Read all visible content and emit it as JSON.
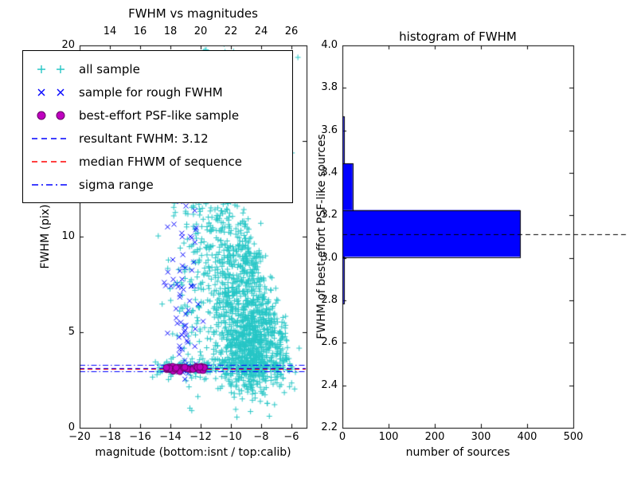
{
  "figure": {
    "background": "#ffffff"
  },
  "chart_data": [
    {
      "type": "scatter",
      "title": "FWHM vs magnitudes",
      "xlabel": "magnitude (bottom:isnt / top:calib)",
      "ylabel": "FWHM (pix)",
      "xlim": [
        -20,
        -5
      ],
      "ylim": [
        0,
        20
      ],
      "xticks": [
        -20,
        -18,
        -16,
        -14,
        -12,
        -10,
        -8,
        -6
      ],
      "xtick_labels": [
        "−20",
        "−18",
        "−16",
        "−14",
        "−12",
        "−10",
        "−8",
        "−6"
      ],
      "yticks": [
        0,
        5,
        10,
        15,
        20
      ],
      "ytick_labels": [
        "0",
        "5",
        "10",
        "15",
        "20"
      ],
      "top_axis": {
        "lim": [
          12,
          27
        ],
        "ticks": [
          14,
          16,
          18,
          20,
          22,
          24,
          26
        ],
        "labels": [
          "14",
          "16",
          "18",
          "20",
          "22",
          "24",
          "26"
        ]
      },
      "grid": false,
      "seed": 1234567,
      "series": [
        {
          "name": "all sample",
          "marker": "plus",
          "color": "#27c6c6",
          "clusters": [
            {
              "n": 650,
              "x": [
                "normal",
                -8.6,
                0.85
              ],
              "y": [
                "normal",
                4.2,
                1.2
              ]
            },
            {
              "n": 420,
              "x": [
                "normal",
                -9.7,
                0.9
              ],
              "y": [
                "normal",
                7.0,
                2.3
              ]
            },
            {
              "n": 280,
              "x": [
                "normal",
                -10.8,
                1.0
              ],
              "y": [
                "normal",
                10.5,
                4.0
              ]
            },
            {
              "n": 160,
              "x": [
                "normal",
                -12.6,
                0.9
              ],
              "y": [
                "normal",
                10.0,
                5.0
              ]
            },
            {
              "n": 230,
              "x": [
                "uniform",
                -15.2,
                -5.7
              ],
              "y": [
                "normal",
                3.15,
                0.3
              ]
            },
            {
              "n": 200,
              "type": "segment",
              "from": [
                -9.3,
                9.5
              ],
              "to": [
                -6.2,
                3.2
              ],
              "jitter": [
                0.35,
                0.9
              ]
            },
            {
              "n": 60,
              "x": [
                "normal",
                -10.0,
                1.5
              ],
              "y": [
                "uniform",
                14.0,
                19.9
              ]
            }
          ]
        },
        {
          "name": "sample for rough FWHM",
          "marker": "x",
          "color": "#0000ff",
          "clusters": [
            {
              "n": 30,
              "x": [
                "normal",
                -13.2,
                0.55
              ],
              "y": [
                "normal",
                7.8,
                1.5
              ]
            },
            {
              "n": 22,
              "x": [
                "normal",
                -13.0,
                0.5
              ],
              "y": [
                "normal",
                4.6,
                0.9
              ]
            },
            {
              "n": 18,
              "x": [
                "uniform",
                -14.2,
                -12.0
              ],
              "y": [
                "normal",
                3.12,
                0.1
              ]
            },
            {
              "n": 12,
              "x": [
                "normal",
                -12.7,
                0.6
              ],
              "y": [
                "normal",
                10.3,
                1.2
              ]
            }
          ]
        },
        {
          "name": "best-effort PSF-like sample",
          "marker": "circle",
          "color": "#bf00bf",
          "edge_color": "#650065",
          "clusters": [
            {
              "n": 48,
              "x": [
                "uniform",
                -14.35,
                -11.75
              ],
              "y": [
                "normal",
                3.1,
                0.06
              ]
            }
          ]
        }
      ],
      "lines": [
        {
          "name": "resultant FWHM",
          "value": 3.12,
          "color": "#0000ff",
          "style": "dashed"
        },
        {
          "name": "median FWHM of sequence",
          "value": 3.1,
          "color": "#ff0000",
          "style": "dashed"
        },
        {
          "name": "sigma range low",
          "value": 2.95,
          "color": "#0000ff",
          "style": "dashdot"
        },
        {
          "name": "sigma range high",
          "value": 3.29,
          "color": "#0000ff",
          "style": "dashdot"
        }
      ],
      "legend": {
        "position": "upper left",
        "entries": [
          {
            "label": "all sample",
            "kind": "marker",
            "marker": "plus",
            "color": "#27c6c6"
          },
          {
            "label": "sample for rough FWHM",
            "kind": "marker",
            "marker": "x",
            "color": "#0000ff"
          },
          {
            "label": "best-effort PSF-like sample",
            "kind": "marker",
            "marker": "circle",
            "color": "#bf00bf",
            "edge_color": "#650065"
          },
          {
            "label": "resultant FWHM: 3.12",
            "kind": "line",
            "style": "dashed",
            "color": "#0000ff"
          },
          {
            "label": "median FHWM of sequence",
            "kind": "line",
            "style": "dashed",
            "color": "#ff0000"
          },
          {
            "label": "sigma range",
            "kind": "line",
            "style": "dashdot",
            "color": "#0000ff"
          }
        ]
      }
    },
    {
      "type": "bar",
      "orientation": "horizontal",
      "title": "histogram of FWHM",
      "xlabel": "number of sources",
      "ylabel": "FWHM of best-effort PSF-like sources",
      "xlim": [
        0,
        500
      ],
      "ylim": [
        2.2,
        4.0
      ],
      "xticks": [
        0,
        100,
        200,
        300,
        400,
        500
      ],
      "xtick_labels": [
        "0",
        "100",
        "200",
        "300",
        "400",
        "500"
      ],
      "yticks": [
        2.2,
        2.4,
        2.6,
        2.8,
        3.0,
        3.2,
        3.4,
        3.6,
        3.8,
        4.0
      ],
      "ytick_labels": [
        "2.2",
        "2.4",
        "2.6",
        "2.8",
        "3.0",
        "3.2",
        "3.4",
        "3.6",
        "3.8",
        "4.0"
      ],
      "grid": false,
      "bar_color": "#0000ff",
      "bar_edge_color": "#000000",
      "bars": [
        {
          "from": 2.785,
          "to": 3.005,
          "count": 3
        },
        {
          "from": 3.005,
          "to": 3.225,
          "count": 385
        },
        {
          "from": 3.225,
          "to": 3.445,
          "count": 22
        },
        {
          "from": 3.445,
          "to": 3.665,
          "count": 3
        }
      ],
      "median_line": {
        "value": 3.11,
        "color": "#000000",
        "style": "dashed"
      }
    }
  ]
}
